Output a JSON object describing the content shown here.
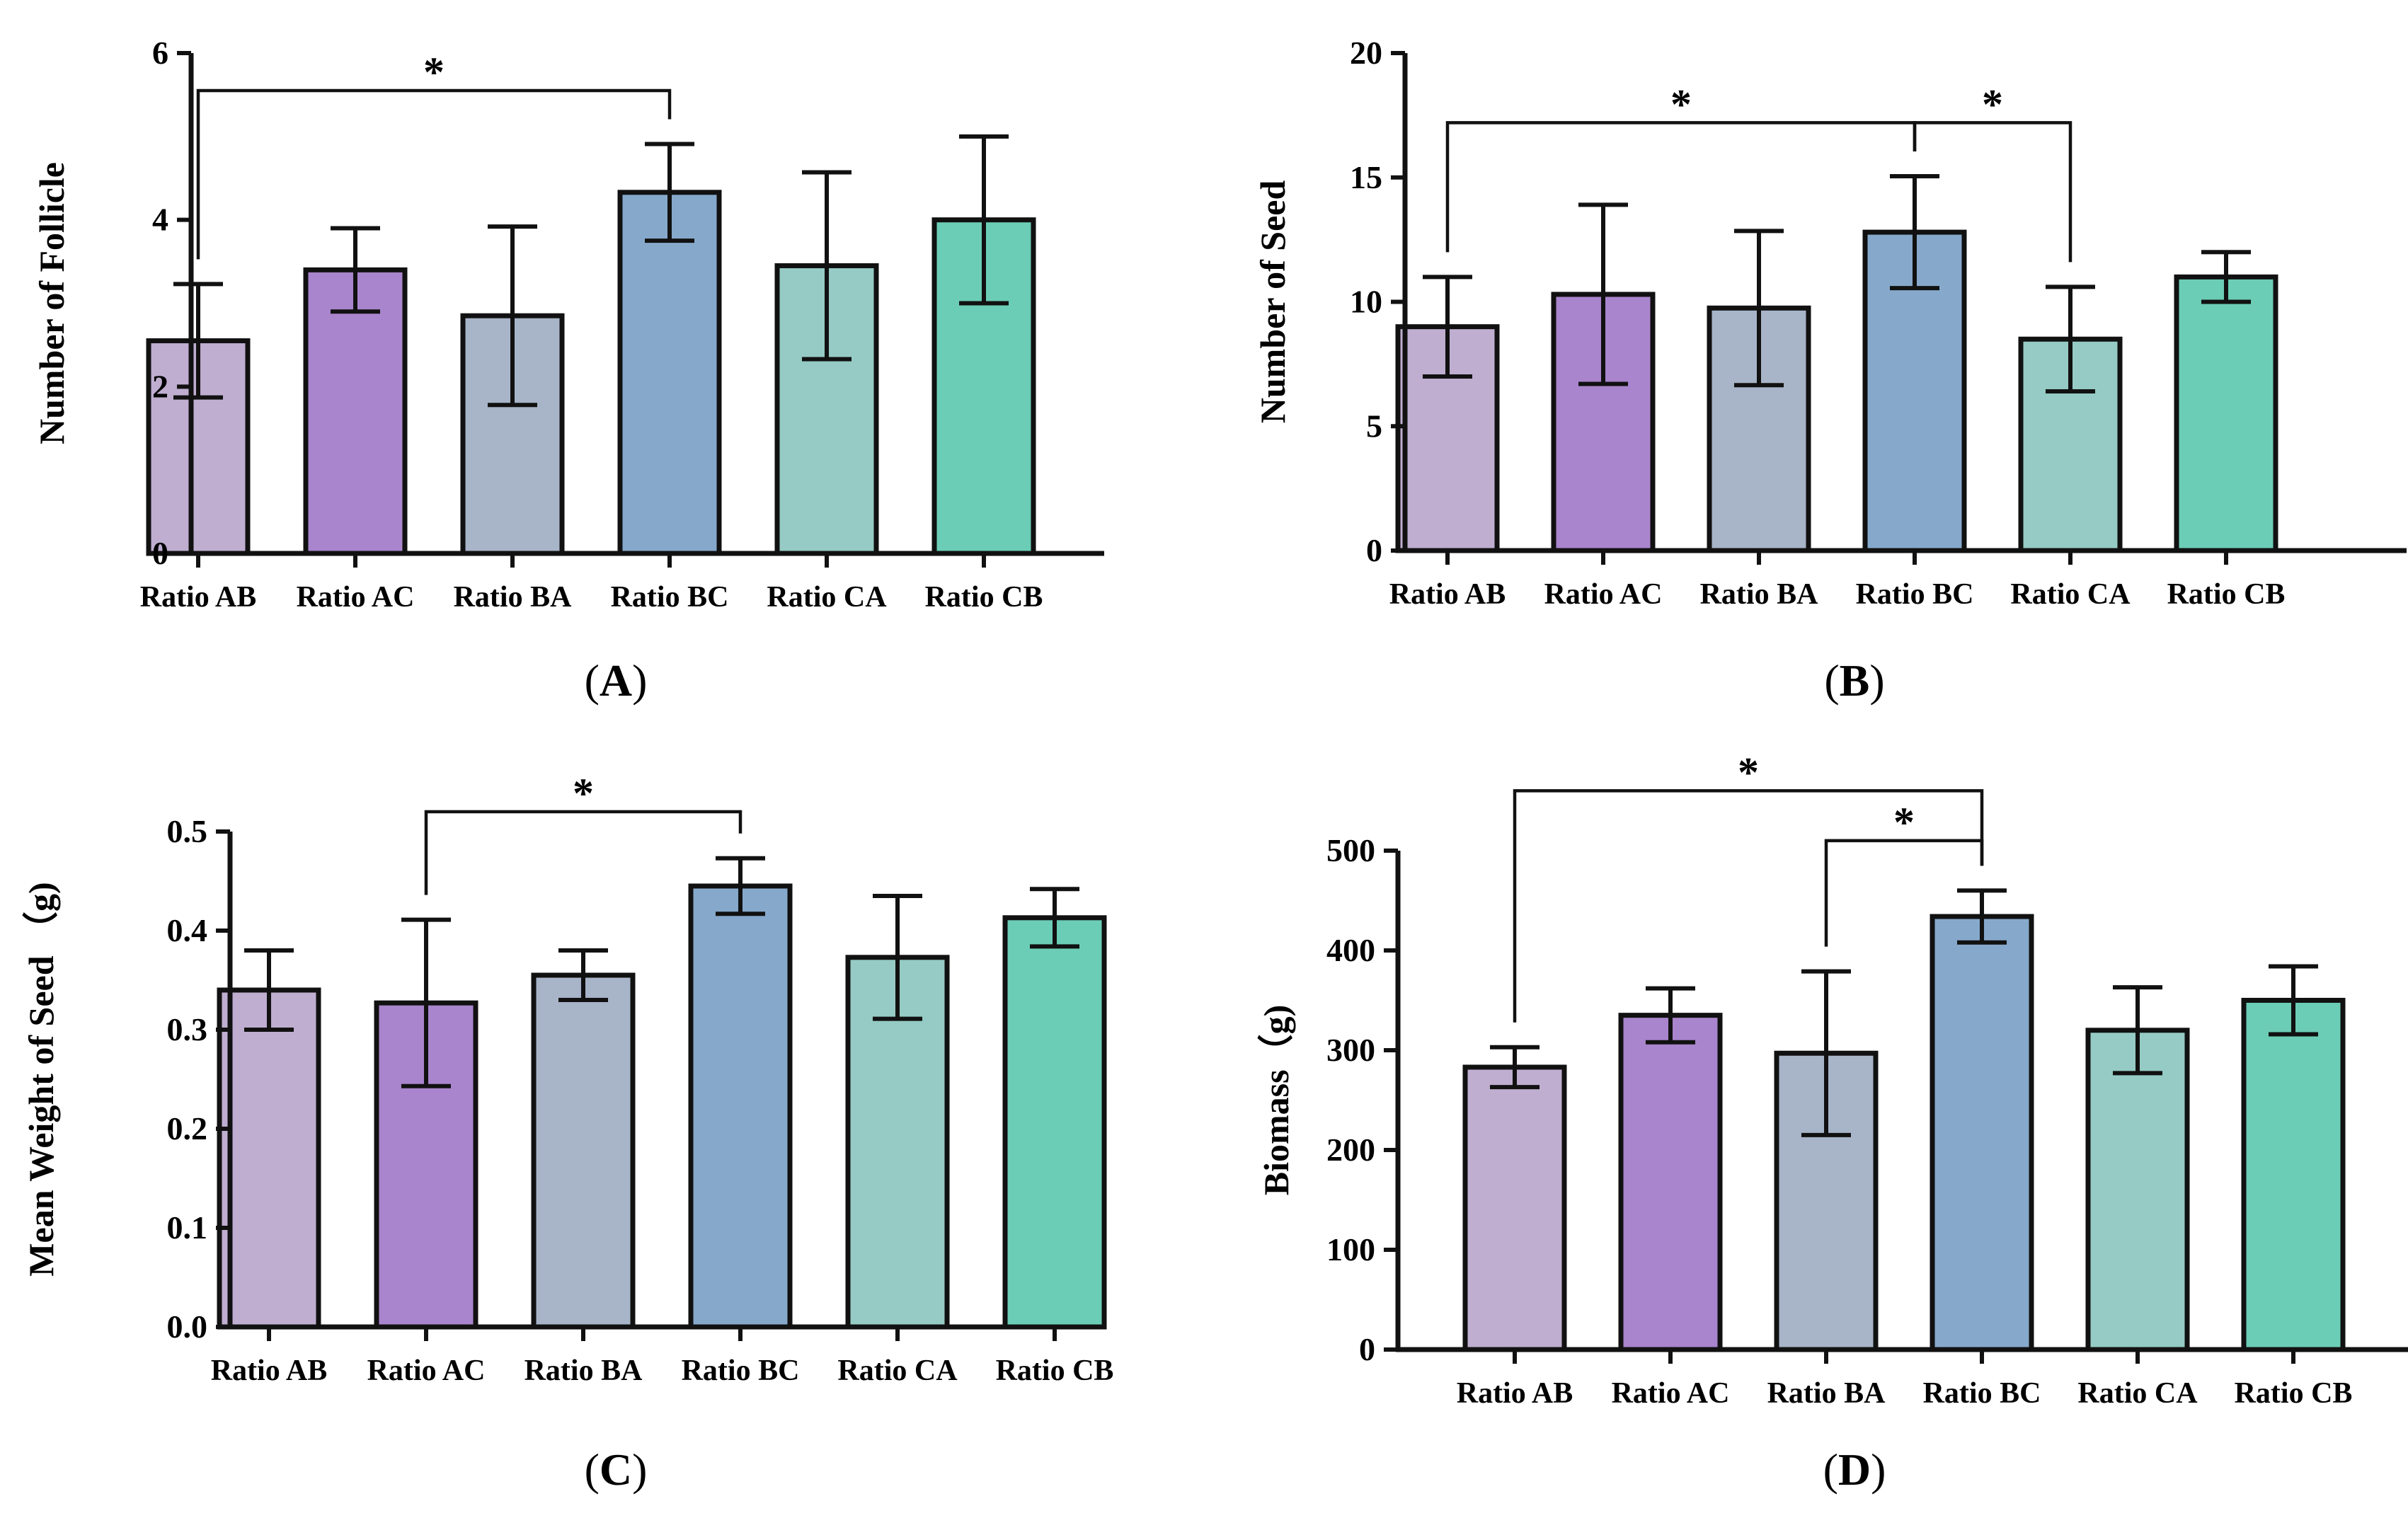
{
  "figure": {
    "colors": [
      "#bfaed0",
      "#a985cd",
      "#a8b4c8",
      "#86a9cb",
      "#95cbc4",
      "#6ccdb6"
    ],
    "edge_color": "#111111"
  },
  "panels": [
    {
      "label": "A",
      "chart_data": {
        "type": "bar",
        "categories": [
          "Ratio AB",
          "Ratio AC",
          "Ratio BA",
          "Ratio BC",
          "Ratio CA",
          "Ratio CB"
        ],
        "values": [
          2.55,
          3.4,
          2.85,
          4.33,
          3.45,
          4.0
        ],
        "errors": [
          0.68,
          0.5,
          1.07,
          0.58,
          1.12,
          1.0
        ],
        "ylabel": "Number of Follicle",
        "xlabel": "",
        "ylim": [
          0,
          6
        ],
        "yticks": [
          0,
          2,
          4,
          6
        ],
        "tick_labels": [
          "0",
          "2",
          "4",
          "6"
        ],
        "significance": [
          {
            "from": 0,
            "to": 3,
            "label": "*",
            "level": 5.55
          }
        ]
      }
    },
    {
      "label": "B",
      "chart_data": {
        "type": "bar",
        "categories": [
          "Ratio AB",
          "Ratio AC",
          "Ratio BA",
          "Ratio BC",
          "Ratio CA",
          "Ratio CB"
        ],
        "values": [
          9.0,
          10.3,
          9.75,
          12.8,
          8.5,
          11.0
        ],
        "errors": [
          2.0,
          3.6,
          3.1,
          2.25,
          2.1,
          1.0
        ],
        "ylabel": "Number of Seed",
        "xlabel": "",
        "ylim": [
          0,
          20
        ],
        "yticks": [
          0,
          5,
          10,
          15,
          20
        ],
        "tick_labels": [
          "0",
          "5",
          "10",
          "15",
          "20"
        ],
        "significance": [
          {
            "from": 0,
            "to": 3,
            "label": "*",
            "level": 17.2
          },
          {
            "from": 3,
            "to": 4,
            "label": "*",
            "level": 17.2
          }
        ]
      }
    },
    {
      "label": "C",
      "chart_data": {
        "type": "bar",
        "categories": [
          "Ratio AB",
          "Ratio AC",
          "Ratio BA",
          "Ratio BC",
          "Ratio CA",
          "Ratio CB"
        ],
        "values": [
          0.34,
          0.327,
          0.355,
          0.445,
          0.373,
          0.413
        ],
        "errors": [
          0.04,
          0.084,
          0.025,
          0.028,
          0.062,
          0.029
        ],
        "ylabel": "Mean Weight of Seed （g)",
        "xlabel": "",
        "ylim": [
          0,
          0.5
        ],
        "yticks": [
          0,
          0.1,
          0.2,
          0.3,
          0.4,
          0.5
        ],
        "tick_labels": [
          "0.0",
          "0.1",
          "0.2",
          "0.3",
          "0.4",
          "0.5"
        ],
        "significance": [
          {
            "from": 1,
            "to": 3,
            "label": "*",
            "level": 0.52
          }
        ]
      }
    },
    {
      "label": "D",
      "chart_data": {
        "type": "bar",
        "categories": [
          "Ratio AB",
          "Ratio AC",
          "Ratio BA",
          "Ratio BC",
          "Ratio CA",
          "Ratio CB"
        ],
        "values": [
          283,
          335,
          297,
          434,
          320,
          350
        ],
        "errors": [
          20,
          27,
          82,
          26,
          43,
          34
        ],
        "ylabel": "Biomass（g)",
        "xlabel": "",
        "ylim": [
          0,
          500
        ],
        "yticks": [
          0,
          100,
          200,
          300,
          400,
          500
        ],
        "tick_labels": [
          "0",
          "100",
          "200",
          "300",
          "400",
          "500"
        ],
        "significance": [
          {
            "from": 0,
            "to": 3,
            "label": "*",
            "level": 560
          },
          {
            "from": 2,
            "to": 3,
            "label": "*",
            "level": 510
          }
        ]
      }
    }
  ]
}
